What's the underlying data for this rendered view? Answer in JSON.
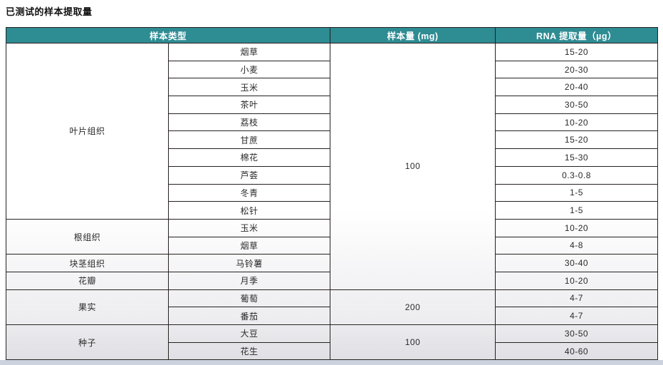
{
  "page": {
    "title": "已测试的样本提取量"
  },
  "theme": {
    "header_bg": "#2E8C93",
    "header_text": "#ffffff",
    "border_color": "#26211f",
    "bottom_band": "#ccd3de"
  },
  "table": {
    "headers": [
      {
        "label": "样本类型"
      },
      {
        "label": "样本量 (mg)"
      },
      {
        "label": "RNA 提取量（µg）"
      }
    ],
    "groups": [
      {
        "type": "叶片组织",
        "rows": [
          {
            "sample": "烟草",
            "rna": "15-20"
          },
          {
            "sample": "小麦",
            "rna": "20-30"
          },
          {
            "sample": "玉米",
            "rna": "20-40"
          },
          {
            "sample": "茶叶",
            "rna": "30-50"
          },
          {
            "sample": "荔枝",
            "rna": "10-20"
          },
          {
            "sample": "甘蔗",
            "rna": "15-20"
          },
          {
            "sample": "棉花",
            "rna": "15-30"
          },
          {
            "sample": "芦荟",
            "rna": "0.3-0.8"
          },
          {
            "sample": "冬青",
            "rna": "1-5"
          },
          {
            "sample": "松针",
            "rna": "1-5"
          }
        ]
      },
      {
        "type": "根组织",
        "rows": [
          {
            "sample": "玉米",
            "rna": "10-20"
          },
          {
            "sample": "烟草",
            "rna": "4-8"
          }
        ]
      },
      {
        "type": "块茎组织",
        "rows": [
          {
            "sample": "马铃薯",
            "rna": "30-40"
          }
        ]
      },
      {
        "type": "花瓣",
        "rows": [
          {
            "sample": "月季",
            "rna": "10-20"
          }
        ]
      },
      {
        "type": "果实",
        "rows": [
          {
            "sample": "葡萄",
            "rna": "4-7"
          },
          {
            "sample": "番茄",
            "rna": "4-7"
          }
        ]
      },
      {
        "type": "种子",
        "rows": [
          {
            "sample": "大豆",
            "rna": "30-50"
          },
          {
            "sample": "花生",
            "rna": "40-60"
          }
        ]
      }
    ],
    "amounts": [
      {
        "value": "100",
        "span": 14
      },
      {
        "value": "200",
        "span": 2
      },
      {
        "value": "100",
        "span": 2
      }
    ]
  }
}
